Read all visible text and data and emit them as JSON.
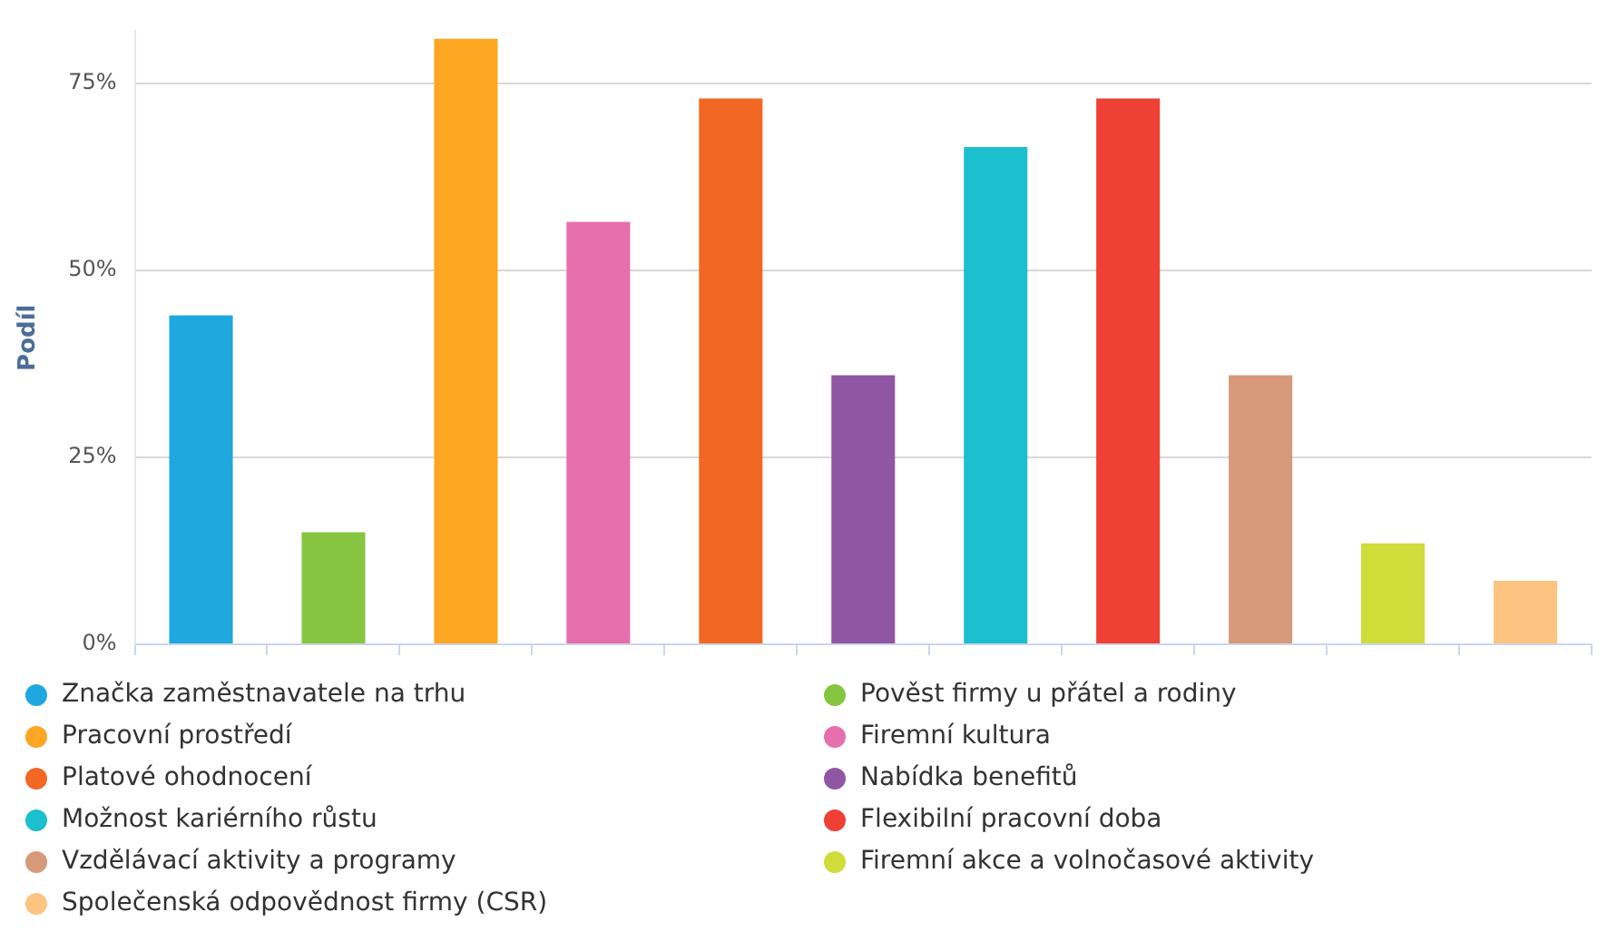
{
  "chart_data": {
    "type": "bar",
    "ylabel": "Podíl",
    "categories": [
      null,
      null,
      null,
      null,
      null,
      null,
      null,
      null,
      null,
      null,
      null
    ],
    "series": [
      {
        "name": "Značka zaměstnavatele na trhu",
        "color": "#1fa8e0",
        "values": [
          44,
          null,
          null,
          null,
          null,
          null,
          null,
          null,
          null,
          null,
          null
        ]
      },
      {
        "name": "Pověst firmy u přátel a rodiny",
        "color": "#86c540",
        "values": [
          null,
          15,
          null,
          null,
          null,
          null,
          null,
          null,
          null,
          null,
          null
        ]
      },
      {
        "name": "Pracovní prostředí",
        "color": "#fca622",
        "values": [
          null,
          null,
          81,
          null,
          null,
          null,
          null,
          null,
          null,
          null,
          null
        ]
      },
      {
        "name": "Firemní kultura",
        "color": "#e76eac",
        "values": [
          null,
          null,
          null,
          56.5,
          null,
          null,
          null,
          null,
          null,
          null,
          null
        ]
      },
      {
        "name": "Platové ohodnocení",
        "color": "#f26724",
        "values": [
          null,
          null,
          null,
          null,
          73,
          null,
          null,
          null,
          null,
          null,
          null
        ]
      },
      {
        "name": "Nabídka benefitů",
        "color": "#8f56a3",
        "values": [
          null,
          null,
          null,
          null,
          null,
          36,
          null,
          null,
          null,
          null,
          null
        ]
      },
      {
        "name": "Možnost kariérního růstu",
        "color": "#1cbfce",
        "values": [
          null,
          null,
          null,
          null,
          null,
          null,
          66.5,
          null,
          null,
          null,
          null
        ]
      },
      {
        "name": "Flexibilní pracovní doba",
        "color": "#ee4035",
        "values": [
          null,
          null,
          null,
          null,
          null,
          null,
          null,
          73,
          null,
          null,
          null
        ]
      },
      {
        "name": "Vzdělávací aktivity a programy",
        "color": "#d69979",
        "values": [
          null,
          null,
          null,
          null,
          null,
          null,
          null,
          null,
          36,
          null,
          null
        ]
      },
      {
        "name": "Firemní akce a volnočasové aktivity",
        "color": "#cfdd3a",
        "values": [
          null,
          null,
          null,
          null,
          null,
          null,
          null,
          null,
          null,
          13.5,
          null
        ]
      },
      {
        "name": "Společenská odpovědnost firmy (CSR)",
        "color": "#fdc381",
        "values": [
          null,
          null,
          null,
          null,
          null,
          null,
          null,
          null,
          null,
          null,
          8.5
        ]
      }
    ],
    "ylim": [
      0,
      82
    ],
    "yticks": [
      {
        "value": 0,
        "label": "0%"
      },
      {
        "value": 25,
        "label": "25%"
      },
      {
        "value": 50,
        "label": "50%"
      },
      {
        "value": 75,
        "label": "75%"
      }
    ],
    "grid": "y",
    "legend": "bottom",
    "tick_labels": "y"
  }
}
